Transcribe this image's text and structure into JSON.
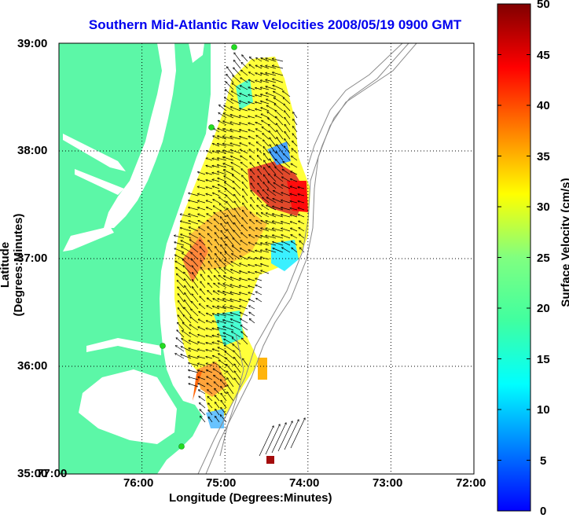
{
  "title": "Southern Mid-Atlantic Raw Velocities 2008/05/19 0900 GMT",
  "xlabel": "Longitude (Degrees:Minutes)",
  "ylabel": "Latitude (Degrees:Minutes)",
  "colorbar_label": "Surface Velocity (cm/s)",
  "x_ticks": [
    "77:00",
    "76:00",
    "75:00",
    "74:00",
    "73:00",
    "72:00"
  ],
  "y_ticks": [
    "39:00",
    "38:00",
    "37:00",
    "36:00",
    "35:00"
  ],
  "colorbar_ticks": [
    "50",
    "45",
    "40",
    "35",
    "30",
    "25",
    "20",
    "15",
    "10",
    "5",
    "0"
  ],
  "colors": {
    "land": "#5cf7a7",
    "station": "#22dd22",
    "contour": "#8a8a8a"
  },
  "chart_data": {
    "type": "map",
    "xlim": [
      -77.0,
      -72.0
    ],
    "ylim": [
      35.0,
      39.0
    ],
    "clim": [
      0,
      50
    ],
    "grid": true
  }
}
